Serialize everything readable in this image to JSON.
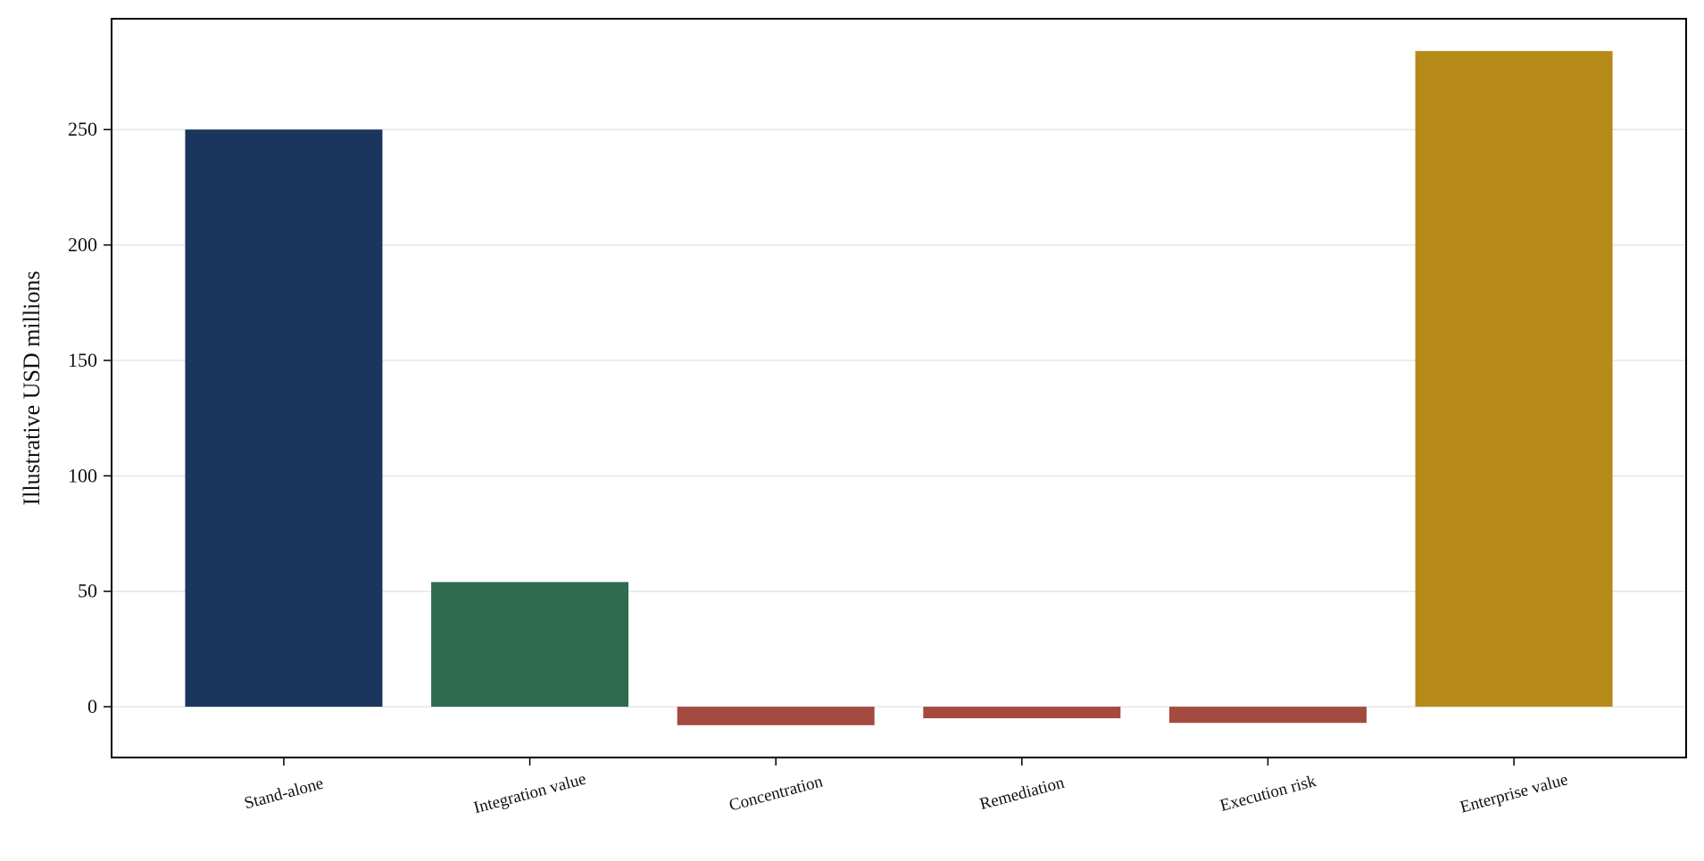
{
  "chart_data": {
    "type": "bar",
    "title": "",
    "xlabel": "",
    "ylabel": "Illustrative USD millions",
    "categories": [
      "Stand-alone",
      "Integration value",
      "Concentration",
      "Remediation",
      "Execution risk",
      "Enterprise value"
    ],
    "values": [
      250,
      54,
      -8,
      -5,
      -7,
      284
    ],
    "colors": [
      "#1b365d",
      "#2e6b4f",
      "#a44a3f",
      "#a44a3f",
      "#a44a3f",
      "#b58a19"
    ],
    "ylim": [
      -22,
      298
    ],
    "yticks": [
      0,
      50,
      100,
      150,
      200,
      250
    ],
    "grid": "horizontal",
    "legend": "none"
  }
}
